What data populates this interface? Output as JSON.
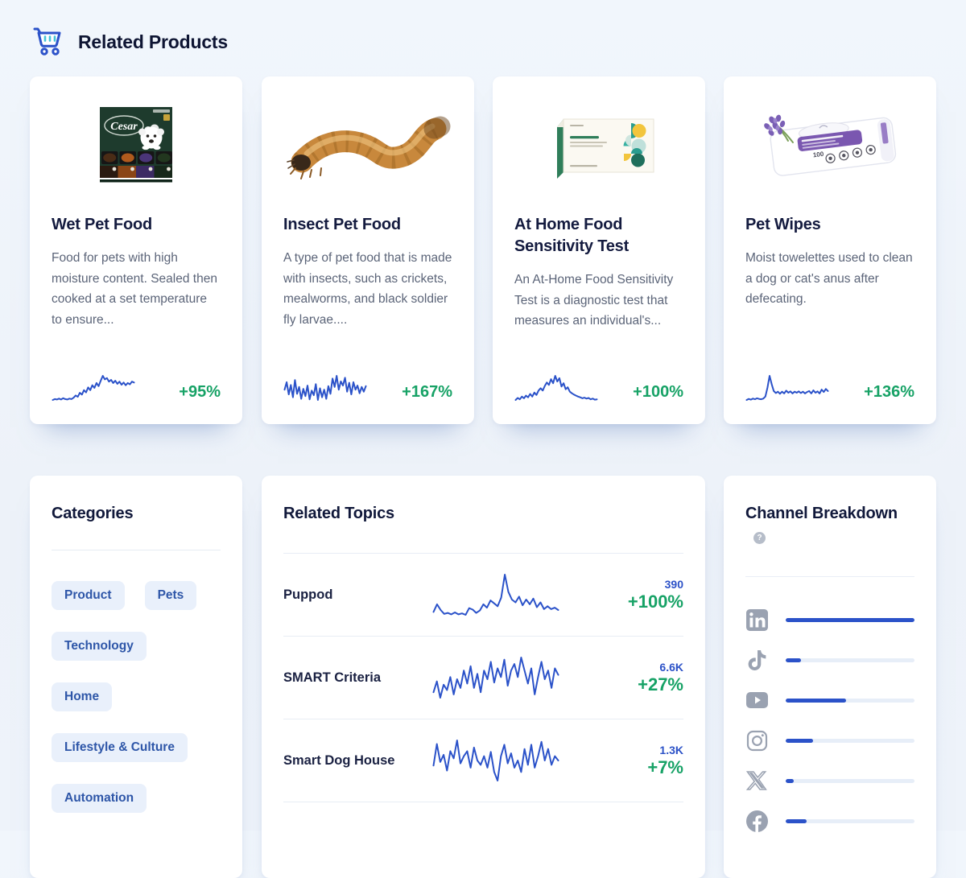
{
  "page": {
    "title": "Related Products"
  },
  "colors": {
    "accent_blue": "#2b52c9",
    "growth_green": "#17a266",
    "icon_gray": "#9aa2b1",
    "pill_bg": "#e9f0fb",
    "pill_text": "#2e56a8",
    "bar_track": "#e7eef8"
  },
  "products": [
    {
      "name": "Wet Pet Food",
      "description": "Food for pets with high moisture content. Sealed then cooked at a set temperature to ensure...",
      "growth": "+95%",
      "image": "cesar-wet-dog-food-box",
      "spark": [
        14,
        16,
        15,
        17,
        15,
        18,
        16,
        15,
        17,
        16,
        19,
        24,
        21,
        30,
        26,
        36,
        31,
        42,
        36,
        47,
        41,
        52,
        45,
        57,
        68,
        60,
        63,
        55,
        59,
        52,
        57,
        50,
        55,
        48,
        53,
        47,
        52,
        49,
        55,
        53
      ]
    },
    {
      "name": "Insect Pet Food",
      "description": "A type of pet food that is made with insects, such as crickets, mealworms, and black soldier fly larvae....",
      "growth": "+167%",
      "image": "mealworm-photo",
      "spark": [
        45,
        72,
        28,
        62,
        18,
        80,
        30,
        55,
        12,
        48,
        22,
        60,
        10,
        42,
        25,
        65,
        8,
        50,
        18,
        45,
        12,
        58,
        30,
        85,
        55,
        95,
        45,
        75,
        60,
        88,
        38,
        70,
        28,
        72,
        45,
        60,
        32,
        55,
        38,
        58
      ]
    },
    {
      "name": "At Home Food Sensitivity Test",
      "description": "An At-Home Food Sensitivity Test is a diagnostic test that measures an individual's...",
      "growth": "+100%",
      "image": "food-sensitivity-test-box",
      "spark": [
        20,
        26,
        22,
        30,
        25,
        33,
        28,
        38,
        30,
        42,
        35,
        48,
        55,
        48,
        62,
        72,
        65,
        82,
        70,
        92,
        75,
        85,
        60,
        70,
        52,
        58,
        45,
        40,
        36,
        33,
        30,
        28,
        25,
        27,
        24,
        26,
        22,
        24,
        21,
        22
      ]
    },
    {
      "name": "Pet Wipes",
      "description": "Moist towelettes used to clean a dog or cat's anus after defecating.",
      "growth": "+136%",
      "image": "pet-wipes-pack",
      "spark": [
        12,
        15,
        13,
        16,
        14,
        17,
        15,
        14,
        16,
        22,
        48,
        82,
        58,
        38,
        32,
        36,
        30,
        36,
        31,
        39,
        33,
        37,
        31,
        36,
        33,
        37,
        32,
        36,
        31,
        35,
        38,
        31,
        40,
        33,
        37,
        31,
        42,
        35,
        44,
        38
      ]
    }
  ],
  "categories": {
    "title": "Categories",
    "items": [
      "Product",
      "Pets",
      "Technology",
      "Home",
      "Lifestyle & Culture",
      "Automation"
    ]
  },
  "related_topics": {
    "title": "Related Topics",
    "rows": [
      {
        "label": "Puppod",
        "volume": "390",
        "growth": "+100%",
        "spark": [
          18,
          34,
          22,
          14,
          16,
          13,
          17,
          13,
          15,
          12,
          26,
          23,
          16,
          21,
          34,
          27,
          42,
          36,
          30,
          48,
          96,
          60,
          44,
          38,
          50,
          32,
          44,
          34,
          46,
          28,
          38,
          24,
          30,
          24,
          27,
          22
        ]
      },
      {
        "label": "SMART Criteria",
        "volume": "6.6K",
        "growth": "+27%",
        "spark": [
          38,
          48,
          33,
          45,
          40,
          52,
          36,
          50,
          42,
          58,
          46,
          62,
          42,
          55,
          38,
          58,
          50,
          66,
          47,
          60,
          52,
          68,
          44,
          58,
          64,
          52,
          70,
          58,
          46,
          60,
          36,
          52,
          66,
          50,
          58,
          42,
          60,
          54
        ]
      },
      {
        "label": "Smart Dog House",
        "volume": "1.3K",
        "growth": "+7%",
        "spark": [
          45,
          75,
          50,
          60,
          38,
          65,
          55,
          80,
          48,
          58,
          65,
          42,
          70,
          52,
          46,
          58,
          42,
          64,
          36,
          24,
          58,
          74,
          48,
          62,
          42,
          52,
          36,
          68,
          46,
          74,
          42,
          58,
          78,
          52,
          68,
          46,
          58,
          52
        ]
      }
    ]
  },
  "channel_breakdown": {
    "title": "Channel Breakdown",
    "help_glyph": "?",
    "channels": [
      {
        "name": "linkedin",
        "share": 100
      },
      {
        "name": "tiktok",
        "share": 12
      },
      {
        "name": "youtube",
        "share": 47
      },
      {
        "name": "instagram",
        "share": 21
      },
      {
        "name": "x",
        "share": 6
      },
      {
        "name": "facebook",
        "share": 16
      }
    ]
  }
}
